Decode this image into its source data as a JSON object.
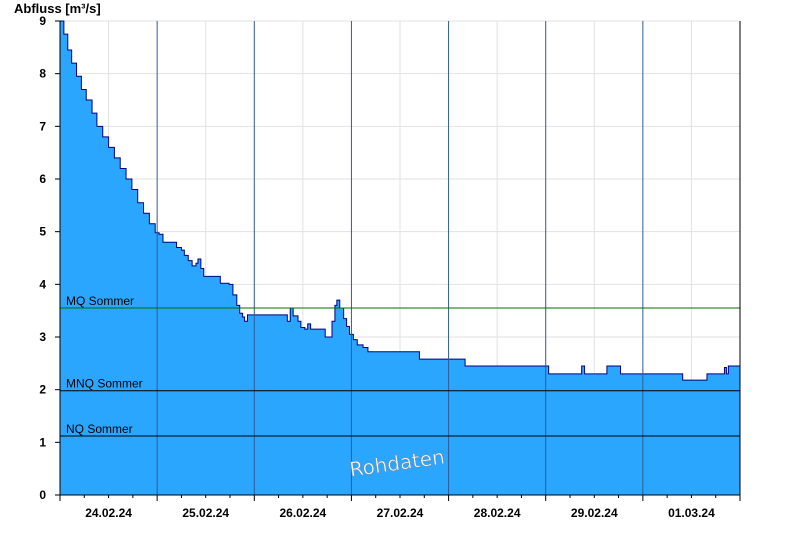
{
  "chart_data": {
    "type": "area",
    "ylabel": "Abfluss [m³/s]",
    "xlabel": "",
    "ylim": [
      0,
      9
    ],
    "yticks": [
      0,
      1,
      2,
      3,
      4,
      5,
      6,
      7,
      8,
      9
    ],
    "x_tick_labels": [
      "24.02.24",
      "25.02.24",
      "26.02.24",
      "27.02.24",
      "28.02.24",
      "29.02.24",
      "01.03.24"
    ],
    "x_unit": "days",
    "x_range_days": [
      0,
      7
    ],
    "grid": true,
    "fill_color": "#2aa6ff",
    "line_color": "#000080",
    "watermark": "Rohdaten",
    "reference_lines": [
      {
        "label": "MQ Sommer",
        "value": 3.55,
        "color": "#007000"
      },
      {
        "label": "MNQ Sommer",
        "value": 1.98,
        "color": "#000000"
      },
      {
        "label": "NQ Sommer",
        "value": 1.12,
        "color": "#000000"
      }
    ],
    "series": [
      {
        "points": [
          [
            0.0,
            9.0
          ],
          [
            0.04,
            8.75
          ],
          [
            0.08,
            8.45
          ],
          [
            0.12,
            8.2
          ],
          [
            0.17,
            7.95
          ],
          [
            0.22,
            7.7
          ],
          [
            0.27,
            7.5
          ],
          [
            0.33,
            7.25
          ],
          [
            0.38,
            7.0
          ],
          [
            0.44,
            6.8
          ],
          [
            0.5,
            6.6
          ],
          [
            0.56,
            6.4
          ],
          [
            0.62,
            6.2
          ],
          [
            0.68,
            6.0
          ],
          [
            0.74,
            5.8
          ],
          [
            0.8,
            5.55
          ],
          [
            0.86,
            5.35
          ],
          [
            0.92,
            5.15
          ],
          [
            0.98,
            4.98
          ],
          [
            1.02,
            4.95
          ],
          [
            1.06,
            4.8
          ],
          [
            1.18,
            4.8
          ],
          [
            1.2,
            4.7
          ],
          [
            1.25,
            4.65
          ],
          [
            1.28,
            4.55
          ],
          [
            1.32,
            4.45
          ],
          [
            1.36,
            4.35
          ],
          [
            1.4,
            4.4
          ],
          [
            1.42,
            4.48
          ],
          [
            1.45,
            4.3
          ],
          [
            1.48,
            4.15
          ],
          [
            1.62,
            4.15
          ],
          [
            1.65,
            4.02
          ],
          [
            1.74,
            4.0
          ],
          [
            1.78,
            3.8
          ],
          [
            1.82,
            3.6
          ],
          [
            1.85,
            3.45
          ],
          [
            1.88,
            3.38
          ],
          [
            1.9,
            3.3
          ],
          [
            1.93,
            3.42
          ],
          [
            2.15,
            3.42
          ],
          [
            2.3,
            3.42
          ],
          [
            2.34,
            3.3
          ],
          [
            2.37,
            3.55
          ],
          [
            2.4,
            3.4
          ],
          [
            2.45,
            3.3
          ],
          [
            2.48,
            3.18
          ],
          [
            2.52,
            3.15
          ],
          [
            2.55,
            3.25
          ],
          [
            2.58,
            3.15
          ],
          [
            2.7,
            3.15
          ],
          [
            2.73,
            3.0
          ],
          [
            2.77,
            3.0
          ],
          [
            2.8,
            3.3
          ],
          [
            2.83,
            3.6
          ],
          [
            2.85,
            3.7
          ],
          [
            2.88,
            3.55
          ],
          [
            2.92,
            3.35
          ],
          [
            2.95,
            3.2
          ],
          [
            2.98,
            3.05
          ],
          [
            3.02,
            2.95
          ],
          [
            3.06,
            2.85
          ],
          [
            3.12,
            2.8
          ],
          [
            3.17,
            2.72
          ],
          [
            3.67,
            2.72
          ],
          [
            3.7,
            2.58
          ],
          [
            4.15,
            2.58
          ],
          [
            4.17,
            2.45
          ],
          [
            5.0,
            2.45
          ],
          [
            5.03,
            2.3
          ],
          [
            5.34,
            2.3
          ],
          [
            5.37,
            2.45
          ],
          [
            5.4,
            2.3
          ],
          [
            5.6,
            2.3
          ],
          [
            5.63,
            2.45
          ],
          [
            5.74,
            2.45
          ],
          [
            5.77,
            2.3
          ],
          [
            6.38,
            2.3
          ],
          [
            6.41,
            2.18
          ],
          [
            6.63,
            2.18
          ],
          [
            6.66,
            2.3
          ],
          [
            6.82,
            2.3
          ],
          [
            6.84,
            2.42
          ],
          [
            6.86,
            2.3
          ],
          [
            6.88,
            2.45
          ],
          [
            7.0,
            2.45
          ]
        ]
      }
    ]
  }
}
